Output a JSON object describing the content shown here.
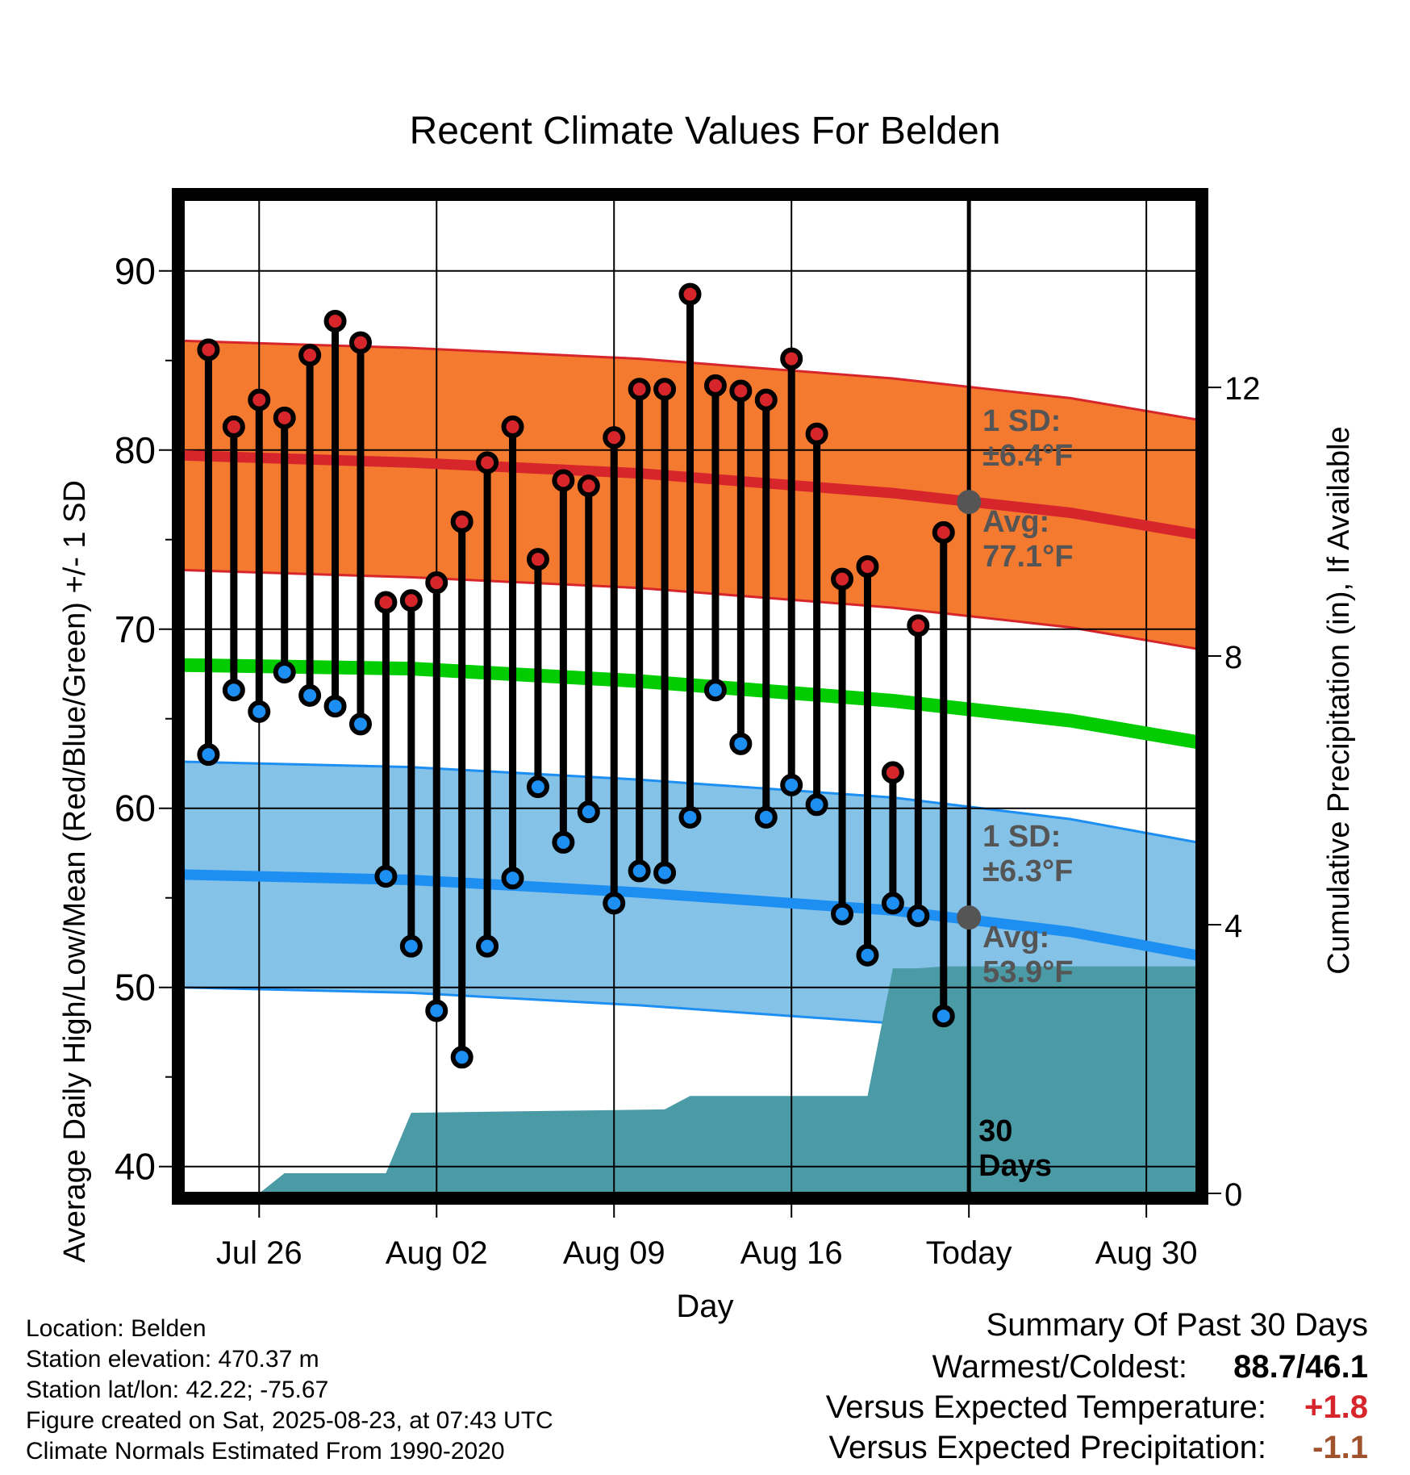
{
  "chart_data": {
    "type": "line",
    "title": "Recent Climate Values For Belden",
    "xlabel": "Day",
    "ylabel": "Average Daily High/Low/Mean (Red/Blue/Green) +/- 1 SD",
    "y2label": "Cumulative Precipitation (in), If Available",
    "ylim": [
      38.5,
      94
    ],
    "y2lim": [
      0,
      14.8
    ],
    "yticks": [
      "40",
      "50",
      "60",
      "70",
      "80",
      "90"
    ],
    "y2ticks": [
      "0",
      "4",
      "8",
      "12"
    ],
    "xlim": [
      "2025-07-23",
      "2025-09-01"
    ],
    "xticks": [
      {
        "date": "2025-07-26",
        "label": "Jul 26"
      },
      {
        "date": "2025-08-02",
        "label": "Aug 02"
      },
      {
        "date": "2025-08-09",
        "label": "Aug 09"
      },
      {
        "date": "2025-08-16",
        "label": "Aug 16"
      },
      {
        "date": "2025-08-23",
        "label": "Today"
      },
      {
        "date": "2025-08-30",
        "label": "Aug 30"
      }
    ],
    "grid": true,
    "today": "2025-08-23",
    "window_label": "30 Days",
    "observed": {
      "dates": [
        "2025-07-24",
        "2025-07-25",
        "2025-07-26",
        "2025-07-27",
        "2025-07-28",
        "2025-07-29",
        "2025-07-30",
        "2025-07-31",
        "2025-08-01",
        "2025-08-02",
        "2025-08-03",
        "2025-08-04",
        "2025-08-05",
        "2025-08-06",
        "2025-08-07",
        "2025-08-08",
        "2025-08-09",
        "2025-08-10",
        "2025-08-11",
        "2025-08-12",
        "2025-08-13",
        "2025-08-14",
        "2025-08-15",
        "2025-08-16",
        "2025-08-17",
        "2025-08-18",
        "2025-08-19",
        "2025-08-20",
        "2025-08-21",
        "2025-08-22"
      ],
      "high": [
        85.6,
        81.3,
        82.8,
        81.8,
        85.3,
        87.2,
        86.0,
        71.5,
        71.6,
        72.6,
        76.0,
        79.3,
        81.3,
        73.9,
        78.3,
        78.0,
        80.7,
        83.4,
        83.4,
        88.7,
        83.6,
        83.3,
        82.8,
        85.1,
        80.9,
        72.8,
        73.5,
        62.0,
        70.2,
        75.4
      ],
      "low": [
        63.0,
        66.6,
        65.4,
        67.6,
        66.3,
        65.7,
        64.7,
        56.2,
        52.3,
        48.7,
        46.1,
        52.3,
        56.1,
        61.2,
        58.1,
        59.8,
        54.7,
        56.5,
        56.4,
        59.5,
        66.6,
        63.6,
        59.5,
        61.3,
        60.2,
        54.1,
        51.8,
        54.7,
        54.0,
        48.4
      ]
    },
    "normals": {
      "dates": [
        "2025-07-23",
        "2025-08-01",
        "2025-08-10",
        "2025-08-20",
        "2025-08-27",
        "2025-09-01"
      ],
      "high_avg": [
        79.7,
        79.3,
        78.7,
        77.6,
        76.5,
        75.3
      ],
      "high_sd": 6.4,
      "low_avg": [
        56.3,
        56.0,
        55.3,
        54.3,
        53.1,
        51.8
      ],
      "low_sd": 6.3,
      "mean": [
        68.0,
        67.8,
        67.1,
        66.0,
        64.9,
        63.7
      ]
    },
    "precip": {
      "dates": [
        "2025-07-26",
        "2025-07-27",
        "2025-07-31",
        "2025-08-01",
        "2025-08-11",
        "2025-08-12",
        "2025-08-19",
        "2025-08-20",
        "2025-08-21",
        "2025-08-22",
        "2025-09-01"
      ],
      "cumulative": [
        0.0,
        0.3,
        0.3,
        1.2,
        1.25,
        1.45,
        1.45,
        3.35,
        3.35,
        3.38,
        3.38
      ]
    },
    "annotations": {
      "high_sd_label": "1 SD:",
      "high_sd_value": "±6.4°F",
      "high_avg_label": "Avg:",
      "high_avg_value": "77.1°F",
      "high_avg_today": 77.1,
      "low_sd_label": "1 SD:",
      "low_sd_value": "±6.3°F",
      "low_avg_label": "Avg:",
      "low_avg_value": "53.9°F",
      "low_avg_today": 53.9
    },
    "colors": {
      "high_band": "#f47a30",
      "high_line": "#d7262b",
      "low_band": "#84c2e8",
      "low_line": "#1e8ff2",
      "mean_line": "#00cc00",
      "precip": "#4a9ba5",
      "high_marker": "#d7262b",
      "low_marker": "#1e8ff2",
      "annotation": "#555555"
    }
  },
  "info": {
    "location": "Location: Belden",
    "elevation": "Station elevation: 470.37 m",
    "latlon": "Station lat/lon: 42.22; -75.67",
    "created": "Figure created on Sat, 2025-08-23, at 07:43 UTC",
    "normals": "Climate Normals Estimated From 1990-2020"
  },
  "summary": {
    "title": "Summary Of Past 30 Days",
    "warmest_label": "Warmest/Coldest:",
    "warmest_value": "88.7/46.1",
    "temp_label": "Versus Expected Temperature:",
    "temp_value": "+1.8",
    "temp_color": "#d7262b",
    "precip_label": "Versus Expected Precipitation:",
    "precip_value": "-1.1",
    "precip_color": "#a0522d"
  }
}
